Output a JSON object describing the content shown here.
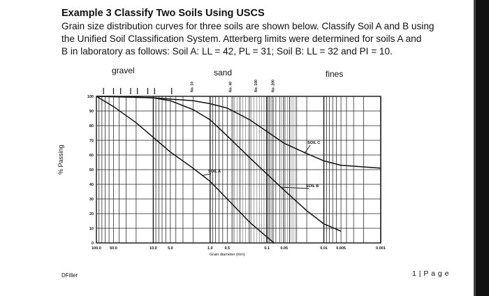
{
  "document": {
    "title": "Example 3  Classify Two Soils Using USCS",
    "paragraph_lines": [
      "Grain size distribution curves for three soils are shown below.  Classify Soil A and B using",
      "the Unified Soil Classification System.  Atterberg limits were determined for soils A and",
      "B in laboratory as follows:  Soil A: LL = 42, PL = 31; Soil B: LL = 32 and PI = 10."
    ],
    "footer_left": "DFiller",
    "footer_page": "1 | P a g e"
  },
  "chart_data": {
    "type": "line",
    "scale_x": "log (reversed)",
    "xlabel": "Grain diameter (mm)",
    "ylabel": "% Passing",
    "zone_labels": [
      "gravel",
      "sand",
      "fines"
    ],
    "sieve_labels": [
      "No. 10",
      "No. 40",
      "No. 100",
      "No. 200"
    ],
    "x_ticks": [
      "100.0",
      "50.0",
      "10.0",
      "5.0",
      "1.0",
      "0.5",
      "0.1",
      "0.05",
      "0.01",
      "0.005",
      "0.001"
    ],
    "y_ticks": [
      "100",
      "90",
      "80",
      "70",
      "60",
      "50",
      "40",
      "30",
      "20",
      "10",
      "0"
    ],
    "xlim": [
      100,
      0.001
    ],
    "ylim": [
      0,
      100
    ],
    "grid": true,
    "series": [
      {
        "name": "SOIL A",
        "x": [
          100,
          50,
          20,
          10,
          5,
          2,
          1,
          0.5,
          0.2,
          0.1,
          0.075
        ],
        "y": [
          100,
          93,
          82,
          72,
          62,
          51,
          42,
          30,
          14,
          4,
          0
        ]
      },
      {
        "name": "SOIL B",
        "x": [
          100,
          50,
          10,
          5,
          2,
          1,
          0.5,
          0.2,
          0.1,
          0.05,
          0.02,
          0.01,
          0.005
        ],
        "y": [
          100,
          100,
          99,
          97,
          91,
          84,
          73,
          58,
          47,
          36,
          22,
          13,
          8
        ]
      },
      {
        "name": "SOIL C",
        "x": [
          100,
          10,
          2,
          1,
          0.5,
          0.2,
          0.1,
          0.05,
          0.02,
          0.01,
          0.005,
          0.001
        ],
        "y": [
          100,
          99,
          97,
          95,
          92,
          84,
          76,
          68,
          61,
          56,
          53,
          51
        ]
      }
    ]
  }
}
